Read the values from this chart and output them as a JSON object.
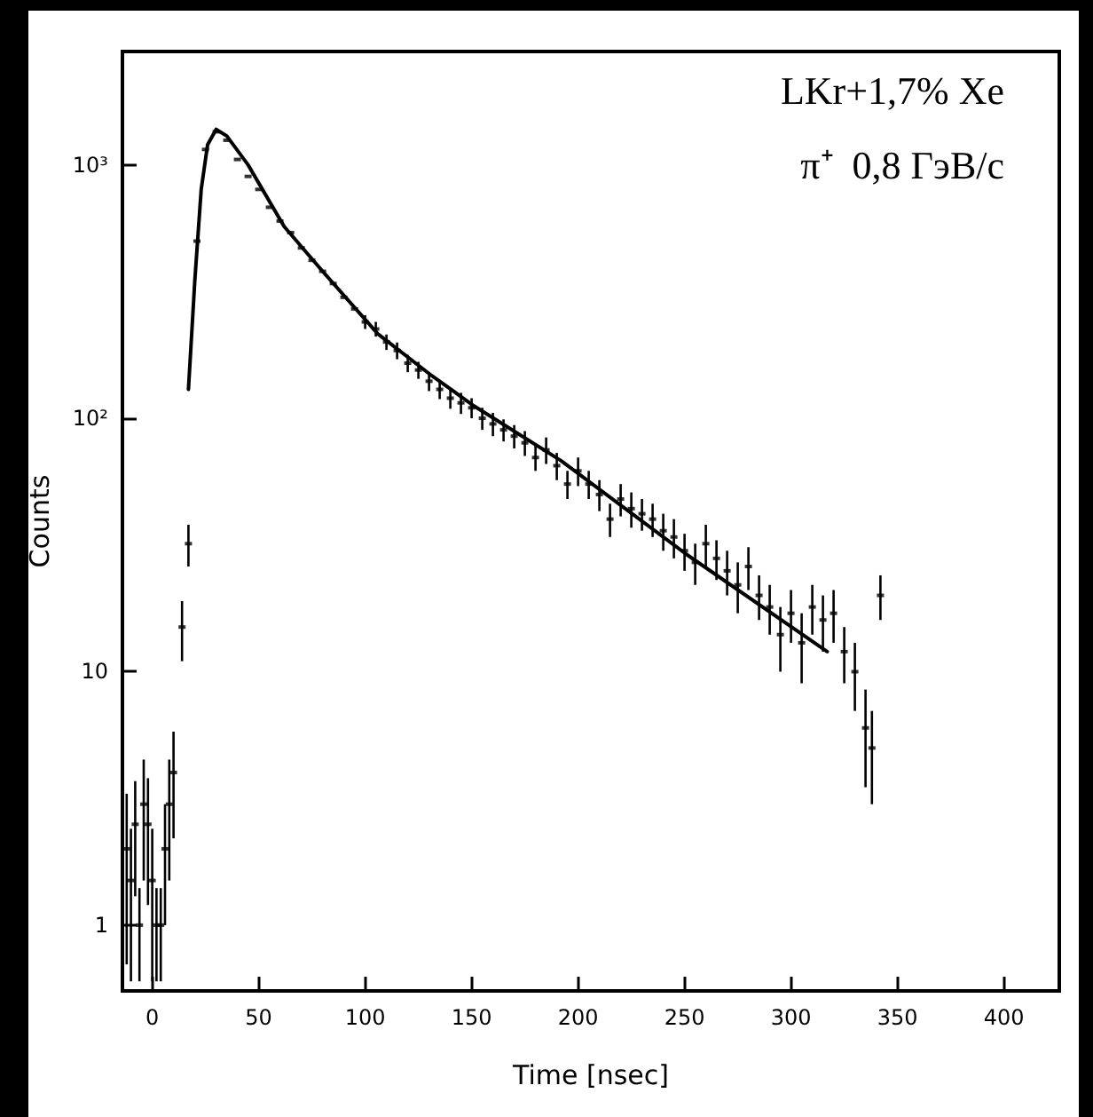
{
  "chart_data": {
    "type": "scatter",
    "xlabel": "Time [nsec]",
    "ylabel": "Counts",
    "annotations": [
      "LKr+1,7% Xe",
      "π⁺  0,8 ГэВ/с"
    ],
    "log": "y",
    "grid": false,
    "marker": "square",
    "xlim": [
      -14,
      426
    ],
    "xticks": [
      0,
      50,
      100,
      150,
      200,
      250,
      300,
      350,
      400
    ],
    "ylim": [
      0.55,
      2800
    ],
    "yticks": [
      1,
      10,
      {
        "value": 100,
        "label": "10²"
      },
      {
        "value": 1000,
        "label": "10³"
      }
    ],
    "series": [
      {
        "color": "#000000",
        "x": [
          -12,
          -10,
          -8,
          -6,
          -4,
          -2,
          0,
          2,
          4,
          6,
          8,
          10,
          14,
          17,
          21,
          25,
          30,
          35,
          40,
          45,
          50,
          55,
          60,
          65,
          70,
          75,
          80,
          85,
          90,
          95,
          100,
          105,
          110,
          115,
          120,
          125,
          130,
          135,
          140,
          145,
          150,
          155,
          160,
          165,
          170,
          175,
          180,
          185,
          190,
          195,
          200,
          205,
          210,
          215,
          220,
          225,
          230,
          235,
          240,
          245,
          250,
          255,
          260,
          265,
          270,
          275,
          280,
          285,
          290,
          295,
          300,
          305,
          310,
          315,
          320,
          325,
          330,
          335,
          338,
          342
        ],
        "values": [
          2,
          1.5,
          2.5,
          1,
          3,
          2.5,
          1.5,
          1,
          1,
          2,
          3,
          4,
          15,
          32,
          500,
          1150,
          1350,
          1250,
          1050,
          900,
          800,
          680,
          600,
          540,
          470,
          420,
          380,
          340,
          300,
          270,
          240,
          225,
          200,
          185,
          165,
          155,
          140,
          130,
          120,
          115,
          110,
          100,
          95,
          90,
          85,
          80,
          70,
          75,
          65,
          55,
          62,
          55,
          50,
          40,
          48,
          44,
          42,
          40,
          36,
          34,
          30,
          27,
          32,
          28,
          25,
          22,
          26,
          20,
          18,
          14,
          17,
          13,
          18,
          16,
          17,
          12,
          10,
          6,
          5,
          20
        ],
        "errors": [
          1.3,
          0.9,
          1.2,
          0.4,
          1.5,
          1.3,
          0.9,
          0.4,
          0.4,
          1,
          1.5,
          1.8,
          4,
          6,
          null,
          null,
          null,
          null,
          null,
          null,
          null,
          null,
          null,
          null,
          null,
          null,
          null,
          null,
          null,
          null,
          15,
          15,
          14,
          14,
          13,
          12,
          12,
          11,
          11,
          11,
          10,
          10,
          10,
          9,
          9,
          9,
          8,
          9,
          8,
          7,
          8,
          7,
          7,
          6,
          7,
          7,
          6,
          6,
          6,
          6,
          5,
          5,
          6,
          5,
          5,
          5,
          5,
          4,
          4,
          4,
          4,
          4,
          4,
          4,
          4,
          3,
          3,
          2.5,
          2,
          4
        ]
      },
      {
        "type": "line",
        "color": "#000000",
        "marker": "none",
        "line_style": "solid",
        "x": [
          17,
          20,
          23,
          26,
          30,
          35,
          45,
          62,
          80,
          106,
          130,
          151,
          192,
          251,
          317
        ],
        "values": [
          130,
          350,
          800,
          1200,
          1380,
          1300,
          1000,
          570,
          380,
          215,
          150,
          112,
          68,
          29,
          12
        ]
      }
    ]
  }
}
